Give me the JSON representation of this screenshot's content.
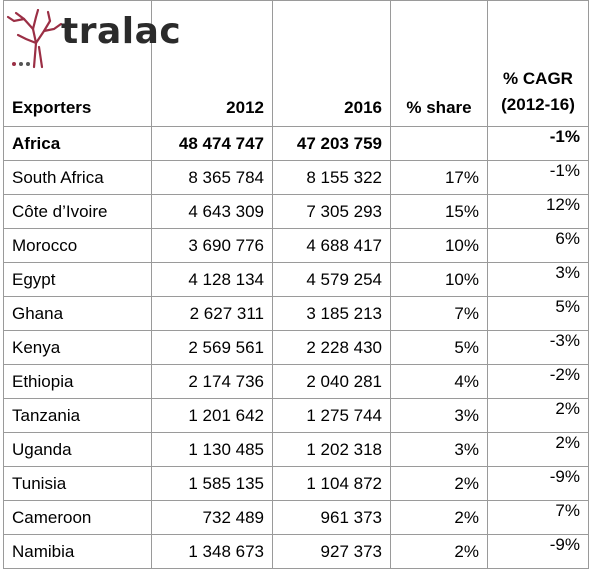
{
  "logo": {
    "text": "tralac",
    "tree_color": "#9b2f45",
    "dot_colors": [
      "#9b2f45",
      "#555555"
    ]
  },
  "header": {
    "exporters": "Exporters",
    "year1": "2012",
    "year2": "2016",
    "share": "% share",
    "cagr_line1": "% CAGR",
    "cagr_line2": "(2012-16)"
  },
  "rows": [
    {
      "country": "Africa",
      "v2012": "48 474 747",
      "v2016": "47 203 759",
      "share": "",
      "cagr": "-1%",
      "bold": true
    },
    {
      "country": "South Africa",
      "v2012": "8 365 784",
      "v2016": "8 155 322",
      "share": "17%",
      "cagr": "-1%"
    },
    {
      "country": "Côte d’Ivoire",
      "v2012": "4 643 309",
      "v2016": "7 305 293",
      "share": "15%",
      "cagr": "12%"
    },
    {
      "country": "Morocco",
      "v2012": "3 690 776",
      "v2016": "4 688 417",
      "share": "10%",
      "cagr": "6%"
    },
    {
      "country": "Egypt",
      "v2012": "4 128 134",
      "v2016": "4 579 254",
      "share": "10%",
      "cagr": "3%"
    },
    {
      "country": "Ghana",
      "v2012": "2 627 311",
      "v2016": "3 185 213",
      "share": "7%",
      "cagr": "5%"
    },
    {
      "country": "Kenya",
      "v2012": "2 569 561",
      "v2016": "2 228 430",
      "share": "5%",
      "cagr": "-3%"
    },
    {
      "country": "Ethiopia",
      "v2012": "2 174 736",
      "v2016": "2 040 281",
      "share": "4%",
      "cagr": "-2%"
    },
    {
      "country": "Tanzania",
      "v2012": "1 201 642",
      "v2016": "1 275 744",
      "share": "3%",
      "cagr": "2%"
    },
    {
      "country": "Uganda",
      "v2012": "1 130 485",
      "v2016": "1 202 318",
      "share": "3%",
      "cagr": "2%"
    },
    {
      "country": "Tunisia",
      "v2012": "1 585 135",
      "v2016": "1 104 872",
      "share": "2%",
      "cagr": "-9%"
    },
    {
      "country": "Cameroon",
      "v2012": "732 489",
      "v2016": "961 373",
      "share": "2%",
      "cagr": "7%"
    },
    {
      "country": "Namibia",
      "v2012": "1 348 673",
      "v2016": "927 373",
      "share": "2%",
      "cagr": "-9%"
    }
  ]
}
